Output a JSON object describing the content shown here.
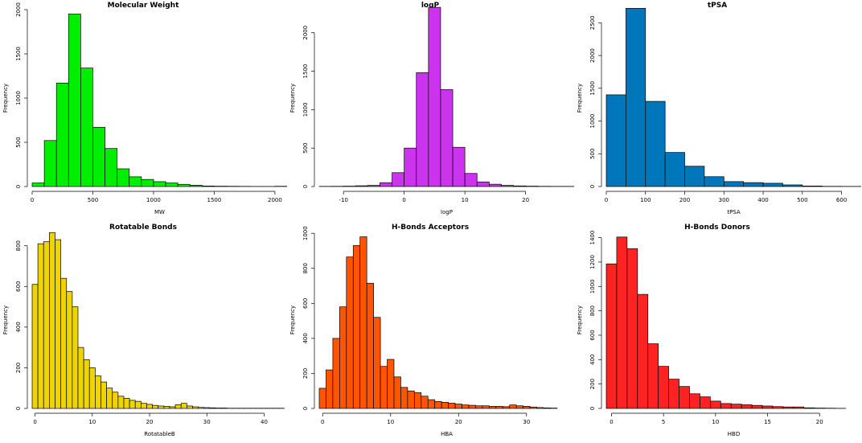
{
  "chart_data": [
    {
      "type": "bar",
      "title": "Molecular Weight",
      "xlabel": "MW",
      "ylabel": "Frequency",
      "color": "#00ee00",
      "xlim": [
        0,
        2100
      ],
      "ylim": [
        0,
        2000
      ],
      "xticks": [
        0,
        500,
        1000,
        1500,
        2000
      ],
      "yticks": [
        0,
        500,
        1000,
        1500,
        2000
      ],
      "bin_start": 0,
      "bin_width": 100,
      "values": [
        40,
        520,
        1170,
        1950,
        1340,
        670,
        430,
        200,
        110,
        80,
        55,
        40,
        25,
        15,
        6,
        4,
        3,
        2,
        1,
        1,
        3
      ]
    },
    {
      "type": "bar",
      "title": "logP",
      "xlabel": "logP",
      "ylabel": "Frequency",
      "color": "#cc33ee",
      "xlim": [
        -14,
        28
      ],
      "ylim": [
        0,
        2300
      ],
      "xticks": [
        -10,
        0,
        10,
        20
      ],
      "yticks": [
        0,
        500,
        1000,
        1500,
        2000
      ],
      "bin_start": -14,
      "bin_width": 2,
      "values": [
        2,
        3,
        5,
        10,
        15,
        50,
        180,
        500,
        1480,
        2330,
        1260,
        510,
        170,
        60,
        30,
        15,
        8,
        5,
        3,
        2,
        2
      ]
    },
    {
      "type": "bar",
      "title": "tPSA",
      "xlabel": "tPSA",
      "ylabel": "Frequency",
      "color": "#0077bb",
      "xlim": [
        0,
        650
      ],
      "ylim": [
        0,
        2700
      ],
      "xticks": [
        0,
        100,
        200,
        300,
        400,
        500,
        600
      ],
      "yticks": [
        0,
        500,
        1000,
        1500,
        2000,
        2500
      ],
      "bin_start": 0,
      "bin_width": 50,
      "values": [
        1400,
        2720,
        1300,
        520,
        310,
        150,
        75,
        60,
        50,
        25,
        8,
        3,
        2
      ]
    },
    {
      "type": "bar",
      "title": "Rotatable Bonds",
      "xlabel": "RotatableB",
      "ylabel": "Frequency",
      "color": "#eed400",
      "xlim": [
        -0.5,
        44
      ],
      "ylim": [
        0,
        870
      ],
      "xticks": [
        0,
        10,
        20,
        30,
        40
      ],
      "yticks": [
        0,
        200,
        400,
        600,
        800
      ],
      "bin_start": -0.5,
      "bin_width": 1,
      "values": [
        610,
        810,
        820,
        865,
        830,
        640,
        575,
        500,
        300,
        240,
        200,
        160,
        130,
        100,
        80,
        60,
        50,
        40,
        35,
        25,
        20,
        15,
        12,
        10,
        8,
        18,
        25,
        12,
        8,
        5,
        4,
        3,
        2,
        2,
        1,
        1,
        1,
        1,
        1,
        1,
        1,
        1,
        1,
        1
      ]
    },
    {
      "type": "bar",
      "title": "H-Bonds Acceptors",
      "xlabel": "HBA",
      "ylabel": "Frequency",
      "color": "#ff5500",
      "xlim": [
        -0.5,
        37
      ],
      "ylim": [
        0,
        1010
      ],
      "xticks": [
        0,
        10,
        20,
        30
      ],
      "yticks": [
        0,
        200,
        400,
        600,
        800,
        1000
      ],
      "bin_start": -0.5,
      "bin_width": 1,
      "values": [
        115,
        220,
        400,
        580,
        865,
        930,
        980,
        715,
        520,
        240,
        280,
        180,
        120,
        100,
        90,
        70,
        50,
        40,
        35,
        30,
        25,
        20,
        18,
        15,
        15,
        12,
        12,
        10,
        20,
        15,
        12,
        8,
        5,
        3,
        2
      ]
    },
    {
      "type": "bar",
      "title": "H-Bonds Donors",
      "xlabel": "HBD",
      "ylabel": "Frequency",
      "color": "#ff2222",
      "xlim": [
        -0.5,
        24
      ],
      "ylim": [
        0,
        1450
      ],
      "xticks": [
        0,
        5,
        10,
        15,
        20
      ],
      "yticks": [
        0,
        200,
        400,
        600,
        800,
        1000,
        1200,
        1400
      ],
      "bin_start": -0.5,
      "bin_width": 1,
      "values": [
        1185,
        1405,
        1310,
        935,
        530,
        345,
        240,
        180,
        120,
        95,
        60,
        40,
        35,
        30,
        25,
        20,
        15,
        12,
        12,
        5,
        3,
        2,
        1
      ]
    }
  ]
}
